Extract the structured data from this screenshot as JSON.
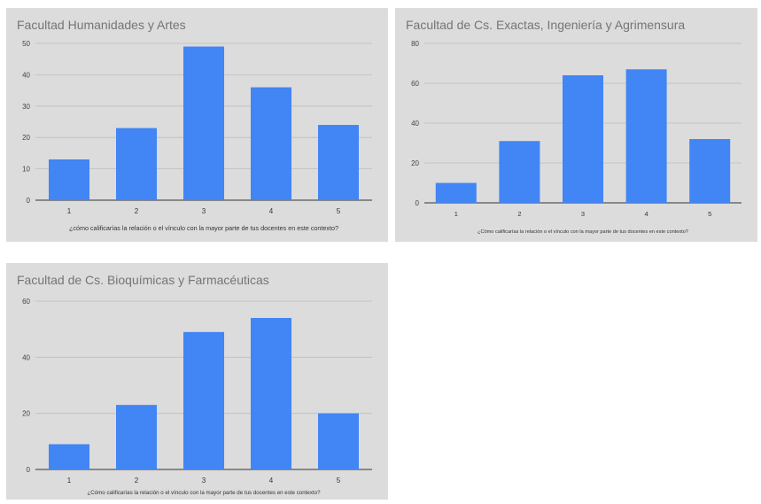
{
  "chart_data": [
    {
      "type": "bar",
      "title": "Facultad Humanidades y Artes",
      "xlabel": "¿cómo calificarías la relación o el vínculo con la mayor parte de tus docentes en este contexto?",
      "ylabel": "",
      "categories": [
        "1",
        "2",
        "3",
        "4",
        "5"
      ],
      "values": [
        13,
        23,
        49,
        36,
        24
      ],
      "ylim": [
        0,
        50
      ],
      "yticks": [
        "0",
        "10",
        "20",
        "30",
        "40",
        "50"
      ],
      "grid": true,
      "bar_color": "#4285f4"
    },
    {
      "type": "bar",
      "title": "Facultad de Cs. Exactas, Ingeniería y Agrimensura",
      "xlabel": "¿Cómo calificarías la relación o el vínculo con la mayor parte de tus docentes en este contexto?",
      "ylabel": "",
      "categories": [
        "1",
        "2",
        "3",
        "4",
        "5"
      ],
      "values": [
        10,
        31,
        64,
        67,
        32
      ],
      "ylim": [
        0,
        80
      ],
      "yticks": [
        "0",
        "20",
        "40",
        "60",
        "80"
      ],
      "grid": true,
      "bar_color": "#4285f4"
    },
    {
      "type": "bar",
      "title": "Facultad de Cs. Bioquímicas y Farmacéuticas",
      "xlabel": "¿Cómo calificarías la relación o el vínculo con la mayor parte de tus docentes en este contexto?",
      "ylabel": "",
      "categories": [
        "1",
        "2",
        "3",
        "4",
        "5"
      ],
      "values": [
        9,
        23,
        49,
        54,
        20
      ],
      "ylim": [
        0,
        60
      ],
      "yticks": [
        "0",
        "20",
        "40",
        "60"
      ],
      "grid": true,
      "bar_color": "#4285f4"
    }
  ]
}
